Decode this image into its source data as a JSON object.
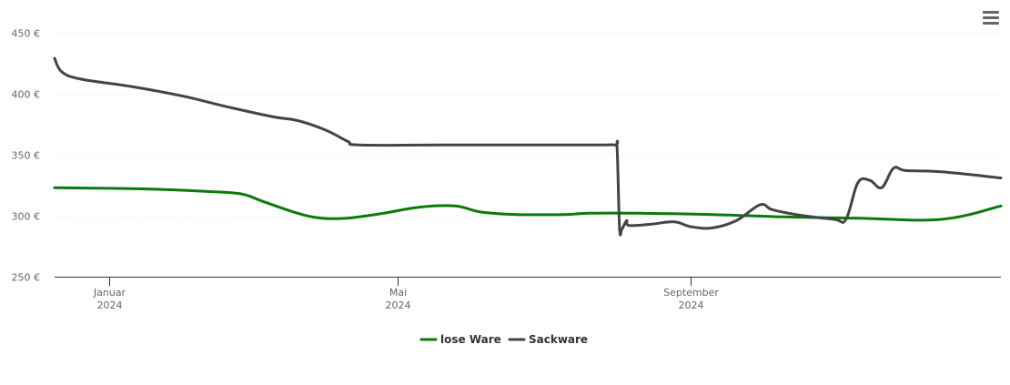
{
  "chart_data": {
    "type": "line",
    "title": "",
    "xlabel": "",
    "ylabel": "",
    "ylim": [
      250,
      450
    ],
    "yticks": [
      {
        "value": 250,
        "label": "250 €"
      },
      {
        "value": 300,
        "label": "300 €"
      },
      {
        "value": 350,
        "label": "350 €"
      },
      {
        "value": 400,
        "label": "400 €"
      },
      {
        "value": 450,
        "label": "450 €"
      }
    ],
    "xlim": [
      "2023-12-09",
      "2025-01-09"
    ],
    "xticks": [
      {
        "date": "2024-01-01",
        "label": "Januar",
        "sublabel": "2024"
      },
      {
        "date": "2024-05-01",
        "label": "Mai",
        "sublabel": "2024"
      },
      {
        "date": "2024-09-01",
        "label": "September",
        "sublabel": "2024"
      }
    ],
    "grid": true,
    "legend": "bottom-center",
    "series": [
      {
        "name": "lose Ware",
        "color": "#0a7a0a",
        "points": [
          [
            "2023-12-09",
            323
          ],
          [
            "2024-01-15",
            322
          ],
          [
            "2024-02-10",
            320
          ],
          [
            "2024-02-25",
            318
          ],
          [
            "2024-03-05",
            312
          ],
          [
            "2024-03-20",
            302
          ],
          [
            "2024-03-30",
            298
          ],
          [
            "2024-04-10",
            298
          ],
          [
            "2024-04-25",
            302
          ],
          [
            "2024-05-10",
            307
          ],
          [
            "2024-05-25",
            308
          ],
          [
            "2024-06-05",
            303
          ],
          [
            "2024-06-20",
            301
          ],
          [
            "2024-07-10",
            301
          ],
          [
            "2024-07-20",
            302
          ],
          [
            "2024-08-10",
            302
          ],
          [
            "2024-09-10",
            301
          ],
          [
            "2024-10-10",
            299
          ],
          [
            "2024-11-10",
            298
          ],
          [
            "2024-12-15",
            297
          ],
          [
            "2025-01-09",
            308
          ]
        ]
      },
      {
        "name": "Sackware",
        "color": "#434348",
        "points": [
          [
            "2023-12-09",
            429
          ],
          [
            "2023-12-12",
            418
          ],
          [
            "2023-12-20",
            412
          ],
          [
            "2024-01-10",
            406
          ],
          [
            "2024-02-01",
            398
          ],
          [
            "2024-02-20",
            389
          ],
          [
            "2024-03-10",
            381
          ],
          [
            "2024-03-20",
            378
          ],
          [
            "2024-04-01",
            370
          ],
          [
            "2024-04-10",
            361
          ],
          [
            "2024-04-15",
            358
          ],
          [
            "2024-05-20",
            358
          ],
          [
            "2024-07-20",
            358
          ],
          [
            "2024-07-31",
            358
          ],
          [
            "2024-08-01",
            355
          ],
          [
            "2024-08-02",
            290
          ],
          [
            "2024-08-03",
            289
          ],
          [
            "2024-08-05",
            296
          ],
          [
            "2024-08-06",
            292
          ],
          [
            "2024-08-15",
            293
          ],
          [
            "2024-08-25",
            295
          ],
          [
            "2024-09-01",
            291
          ],
          [
            "2024-09-10",
            290
          ],
          [
            "2024-09-20",
            296
          ],
          [
            "2024-09-30",
            309
          ],
          [
            "2024-10-05",
            305
          ],
          [
            "2024-10-15",
            301
          ],
          [
            "2024-10-31",
            297
          ],
          [
            "2024-11-05",
            297
          ],
          [
            "2024-11-10",
            327
          ],
          [
            "2024-11-15",
            329
          ],
          [
            "2024-11-20",
            323
          ],
          [
            "2024-11-25",
            339
          ],
          [
            "2024-11-30",
            337
          ],
          [
            "2024-12-15",
            336
          ],
          [
            "2025-01-09",
            331
          ]
        ]
      }
    ]
  },
  "menu": {
    "icon": "hamburger-menu-icon"
  }
}
